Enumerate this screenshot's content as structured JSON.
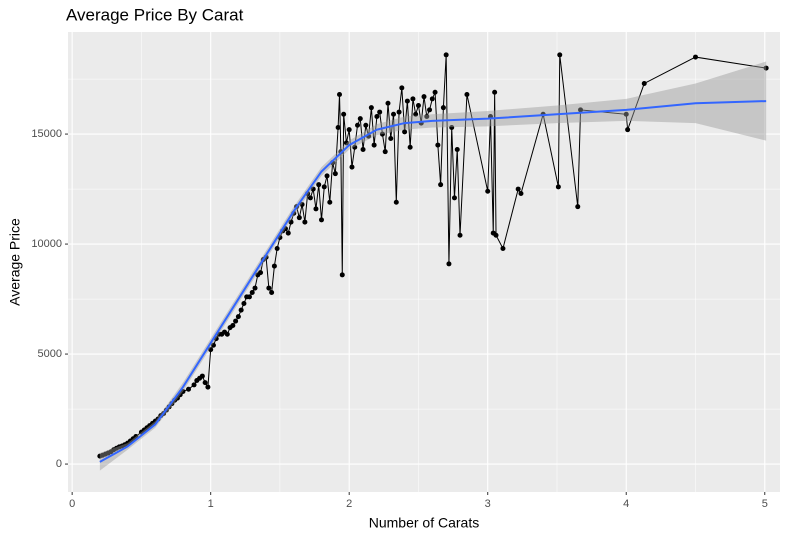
{
  "chart_data": {
    "type": "line",
    "title": "Average Price By Carat",
    "x_label": "Number of Carats",
    "y_label": "Average Price",
    "xlim": [
      -0.03,
      5.11
    ],
    "ylim": [
      -1270,
      19640
    ],
    "xticks": [
      0,
      1,
      2,
      3,
      4,
      5
    ],
    "yticks": [
      0,
      5000,
      10000,
      15000
    ],
    "x_minor_ticks": [
      0.5,
      1.5,
      2.5,
      3.5,
      4.5
    ],
    "y_minor_ticks": [
      2500,
      7500,
      12500,
      17500
    ],
    "grid": true,
    "panel_color": "#ebebeb",
    "series": [
      {
        "color": "#000000",
        "x": [
          0.2,
          0.22,
          0.24,
          0.26,
          0.28,
          0.3,
          0.32,
          0.34,
          0.36,
          0.38,
          0.4,
          0.42,
          0.44,
          0.46,
          0.5,
          0.52,
          0.54,
          0.56,
          0.58,
          0.6,
          0.62,
          0.64,
          0.66,
          0.68,
          0.7,
          0.72,
          0.74,
          0.76,
          0.78,
          0.8,
          0.84,
          0.88,
          0.9,
          0.92,
          0.94,
          0.96,
          0.98,
          1.0,
          1.02,
          1.04,
          1.06,
          1.08,
          1.1,
          1.12,
          1.14,
          1.16,
          1.18,
          1.2,
          1.22,
          1.24,
          1.26,
          1.28,
          1.3,
          1.32,
          1.34,
          1.36,
          1.38,
          1.4,
          1.42,
          1.44,
          1.46,
          1.48,
          1.5,
          1.52,
          1.54,
          1.56,
          1.58,
          1.6,
          1.62,
          1.64,
          1.66,
          1.68,
          1.7,
          1.72,
          1.74,
          1.76,
          1.78,
          1.8,
          1.82,
          1.84,
          1.86,
          1.88,
          1.9,
          1.92,
          1.93,
          1.94,
          1.95,
          1.96,
          1.98,
          2.0,
          2.02,
          2.04,
          2.06,
          2.08,
          2.1,
          2.12,
          2.14,
          2.16,
          2.18,
          2.2,
          2.22,
          2.24,
          2.26,
          2.28,
          2.3,
          2.32,
          2.34,
          2.36,
          2.38,
          2.4,
          2.42,
          2.44,
          2.46,
          2.48,
          2.5,
          2.52,
          2.54,
          2.56,
          2.58,
          2.6,
          2.62,
          2.64,
          2.66,
          2.68,
          2.7,
          2.72,
          2.74,
          2.76,
          2.78,
          2.8,
          2.85,
          3.0,
          3.02,
          3.04,
          3.05,
          3.06,
          3.11,
          3.22,
          3.24,
          3.4,
          3.51,
          3.52,
          3.65,
          3.67,
          4.0,
          4.01,
          4.13,
          4.5,
          5.01
        ],
        "values": [
          360,
          400,
          450,
          500,
          560,
          650,
          720,
          780,
          820,
          880,
          950,
          1050,
          1150,
          1250,
          1450,
          1550,
          1650,
          1750,
          1850,
          1950,
          2050,
          2200,
          2300,
          2450,
          2600,
          2750,
          2900,
          3000,
          3150,
          3300,
          3400,
          3600,
          3800,
          3900,
          4000,
          3700,
          3500,
          5200,
          5400,
          5700,
          5900,
          5900,
          6000,
          5900,
          6200,
          6300,
          6500,
          6700,
          7000,
          7300,
          7600,
          7600,
          7800,
          8000,
          8600,
          8700,
          9300,
          9400,
          8000,
          7800,
          9000,
          9800,
          10300,
          10600,
          10700,
          10500,
          11000,
          11400,
          11700,
          11200,
          11800,
          11000,
          12300,
          12100,
          12500,
          11600,
          12700,
          11100,
          12600,
          13100,
          11900,
          13700,
          13200,
          15300,
          16800,
          14200,
          8600,
          15900,
          14600,
          15200,
          13500,
          14400,
          15400,
          15700,
          14300,
          15400,
          14900,
          16200,
          14500,
          15800,
          16000,
          15000,
          14200,
          16400,
          14800,
          15900,
          11900,
          16000,
          17100,
          15100,
          16500,
          14400,
          16600,
          15900,
          16300,
          15500,
          16700,
          15800,
          16100,
          16600,
          16900,
          14500,
          12700,
          16200,
          18600,
          9100,
          15300,
          12100,
          14300,
          10400,
          16800,
          12400,
          15800,
          10500,
          16900,
          10400,
          9800,
          12500,
          12300,
          15900,
          12600,
          18600,
          11700,
          16100,
          15900,
          15200,
          17300,
          18500,
          18000
        ]
      },
      {
        "color": "#3366ff",
        "band_color": "#999999",
        "x": [
          0.2,
          0.4,
          0.6,
          0.8,
          1.0,
          1.2,
          1.4,
          1.6,
          1.8,
          2.0,
          2.2,
          2.4,
          2.6,
          3.0,
          3.5,
          4.0,
          4.5,
          5.01
        ],
        "values": [
          100,
          800,
          1800,
          3500,
          5500,
          7500,
          9500,
          11500,
          13300,
          14500,
          15200,
          15500,
          15600,
          15700,
          15900,
          16100,
          16400,
          16500
        ],
        "lower": [
          -300,
          650,
          1650,
          3300,
          5300,
          7300,
          9300,
          11300,
          13100,
          14300,
          14950,
          15200,
          15300,
          15350,
          15500,
          15600,
          15500,
          14700
        ],
        "upper": [
          500,
          950,
          1950,
          3700,
          5700,
          7700,
          9700,
          11700,
          13500,
          14700,
          15450,
          15800,
          15900,
          16050,
          16300,
          16600,
          17300,
          18300
        ]
      }
    ]
  }
}
